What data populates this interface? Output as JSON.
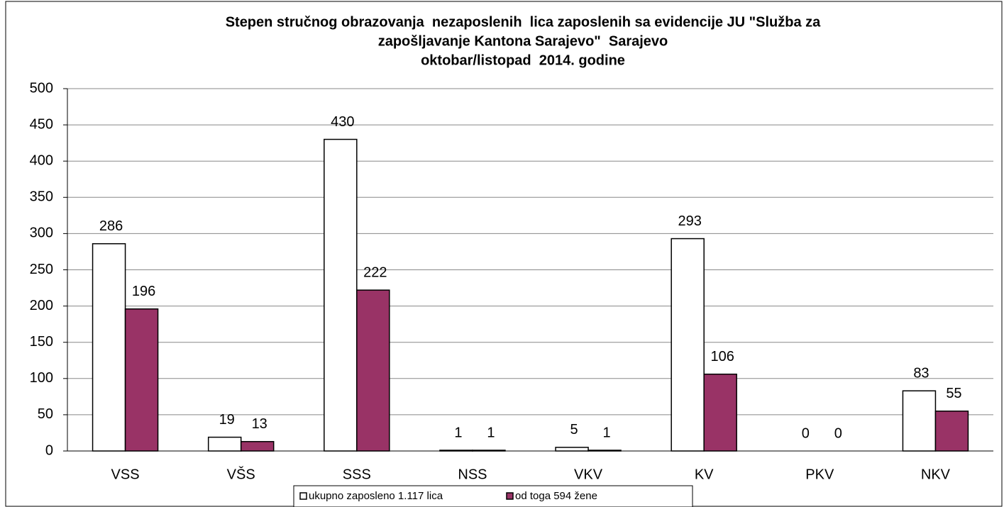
{
  "chart_data": {
    "type": "bar",
    "title": [
      "Stepen stručnog obrazovanja  nezaposlenih  lica zaposlenih sa evidencije JU \"Služba za",
      "zapošljavanje Kantona Sarajevo\"  Sarajevo",
      "oktobar/listopad  2014. godine"
    ],
    "categories": [
      "VSS",
      "VŠS",
      "SSS",
      "NSS",
      "VKV",
      "KV",
      "PKV",
      "NKV"
    ],
    "series": [
      {
        "name": "ukupno zaposleno 1.117 lica",
        "color": "#ffffff",
        "values": [
          286,
          19,
          430,
          1,
          5,
          293,
          0,
          83
        ]
      },
      {
        "name": "od toga 594 žene",
        "color": "#993366",
        "values": [
          196,
          13,
          222,
          1,
          1,
          106,
          0,
          55
        ]
      }
    ],
    "ylim": [
      0,
      500
    ],
    "yticks": [
      0,
      50,
      100,
      150,
      200,
      250,
      300,
      350,
      400,
      450,
      500
    ],
    "grid": true,
    "legend": "bottom"
  }
}
